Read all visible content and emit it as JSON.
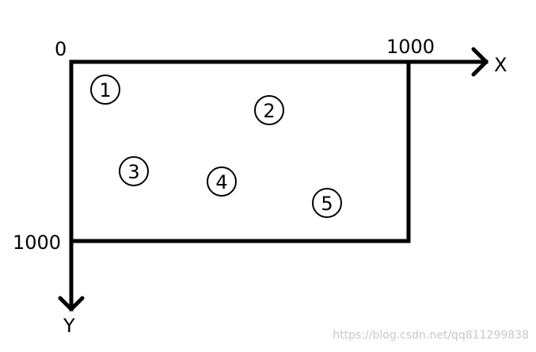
{
  "diagram": {
    "origin_label": "0",
    "x_max_label": "1000",
    "y_max_label": "1000",
    "x_axis_label": "X",
    "y_axis_label": "Y",
    "points": [
      {
        "label": "1"
      },
      {
        "label": "2"
      },
      {
        "label": "3"
      },
      {
        "label": "4"
      },
      {
        "label": "5"
      }
    ]
  },
  "watermark": "https://blog.csdn.net/qq811299838",
  "colors": {
    "stroke": "#000000",
    "watermark": "#c8c8c8"
  }
}
